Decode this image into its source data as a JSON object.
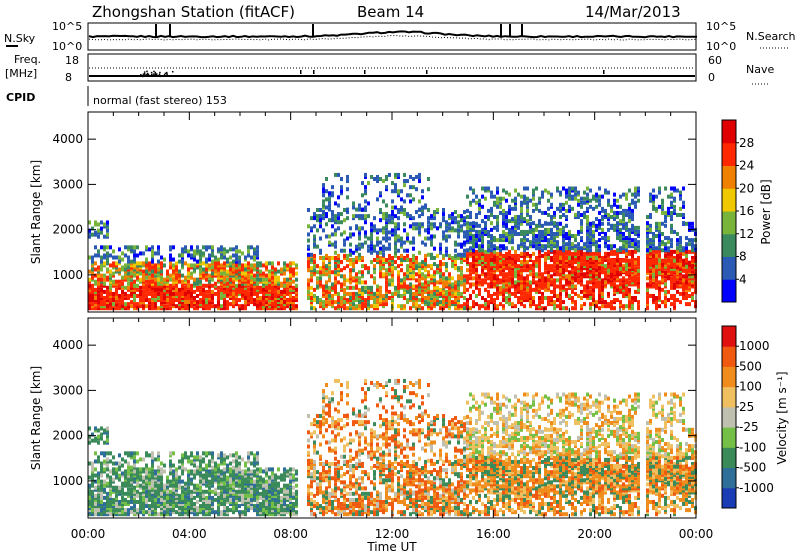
{
  "header": {
    "station": "Zhongshan Station (fitACF)",
    "beam": "Beam 14",
    "date": "14/Mar/2013"
  },
  "noise_panel": {
    "left_label": "N.Sky",
    "right_label": "N.Search",
    "left_ticks": [
      "10^5",
      "10^0"
    ],
    "right_ticks": [
      "10^5",
      "10^0"
    ]
  },
  "freq_panel": {
    "left_label_line1": "Freq.",
    "left_label_line2": "[MHz]",
    "right_label": "Nave",
    "left_ticks": [
      "18",
      "8"
    ],
    "right_ticks": [
      "60",
      "0"
    ]
  },
  "cpid_panel": {
    "label": "CPID",
    "text": "normal (fast stereo) 153"
  },
  "chart_data": [
    {
      "type": "heatmap",
      "name": "power",
      "ylabel": "Slant Range [km]",
      "ylim": [
        180,
        4600
      ],
      "yticks": [
        "1000",
        "2000",
        "3000",
        "4000"
      ],
      "x_ticks": [
        "00:00",
        "04:00",
        "08:00",
        "12:00",
        "16:00",
        "20:00",
        "00:00"
      ],
      "colorbar": {
        "label": "Power [dB]",
        "ticks": [
          "4",
          "8",
          "12",
          "16",
          "20",
          "24",
          "28"
        ],
        "colors": [
          "#0000ff",
          "#2a5ab4",
          "#3a8a5e",
          "#78b43a",
          "#f0c800",
          "#f08000",
          "#ff2800",
          "#e00000"
        ]
      }
    },
    {
      "type": "heatmap",
      "name": "velocity",
      "ylabel": "Slant Range [km]",
      "ylim": [
        180,
        4600
      ],
      "yticks": [
        "1000",
        "2000",
        "3000",
        "4000"
      ],
      "x_ticks": [
        "00:00",
        "04:00",
        "08:00",
        "12:00",
        "16:00",
        "20:00",
        "00:00"
      ],
      "xlabel": "Time UT",
      "colorbar": {
        "label": "Velocity [m s⁻¹]",
        "ticks": [
          "1000",
          "500",
          "100",
          "25",
          "-25",
          "-100",
          "-500",
          "-1000"
        ],
        "colors": [
          "#1a3cb4",
          "#2e6e98",
          "#3a8a5a",
          "#74c046",
          "#c0c0b0",
          "#f0c060",
          "#f08c1c",
          "#f05a10",
          "#e01010"
        ]
      }
    }
  ]
}
